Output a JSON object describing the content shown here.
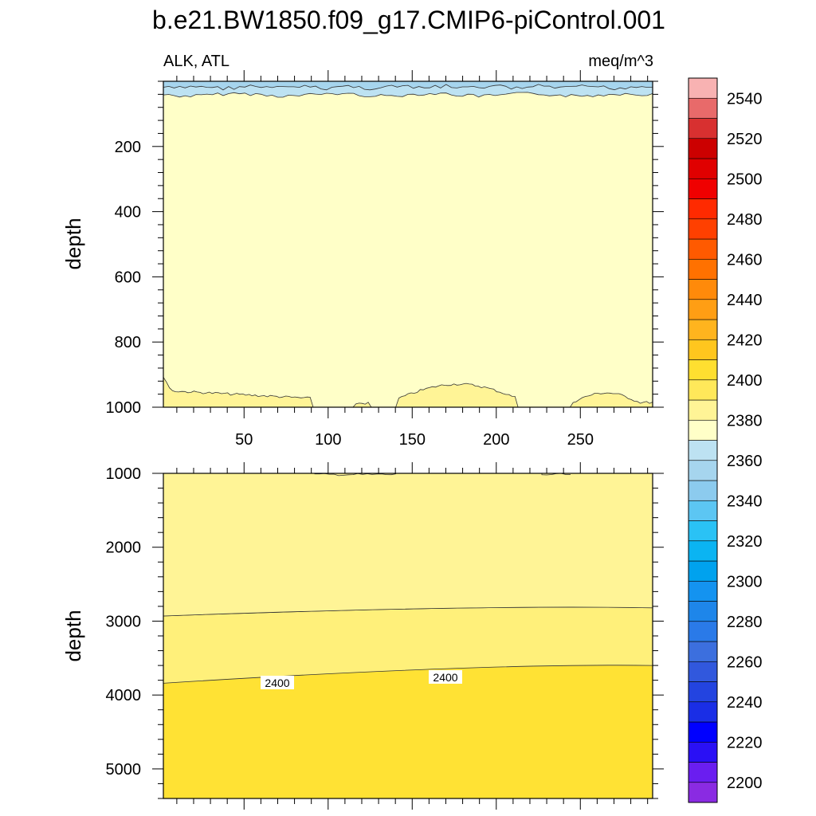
{
  "chart_data": {
    "type": "heatmap",
    "title": "b.e21.BW1850.f09_g17.CMIP6-piControl.001",
    "left_subtitle": "ALK, ATL",
    "right_subtitle": "meq/m^3",
    "ylabel": "depth",
    "x_ticks": [
      50,
      100,
      150,
      200,
      250
    ],
    "xlim": [
      2,
      293
    ],
    "panels": [
      {
        "name": "upper",
        "ylim": [
          0,
          1000
        ],
        "y_ticks": [
          200,
          400,
          600,
          800,
          1000
        ],
        "x_tick_labels_shown": true
      },
      {
        "name": "lower",
        "ylim": [
          1000,
          5400
        ],
        "y_ticks": [
          1000,
          2000,
          3000,
          4000,
          5000
        ],
        "x_tick_labels_shown": false,
        "contour_labels": [
          "2400",
          "2400"
        ]
      }
    ],
    "colorbar": {
      "levels": [
        2200,
        2210,
        2220,
        2230,
        2240,
        2250,
        2260,
        2270,
        2280,
        2290,
        2300,
        2310,
        2320,
        2330,
        2340,
        2350,
        2360,
        2370,
        2380,
        2390,
        2400,
        2410,
        2420,
        2430,
        2440,
        2450,
        2460,
        2470,
        2480,
        2490,
        2500,
        2510,
        2520,
        2530,
        2540,
        2550
      ],
      "labels": [
        "2200",
        "2220",
        "2240",
        "2260",
        "2280",
        "2300",
        "2320",
        "2340",
        "2360",
        "2380",
        "2400",
        "2420",
        "2440",
        "2460",
        "2480",
        "2500",
        "2520",
        "2540"
      ],
      "colors": [
        "#8a2be2",
        "#6a1ef0",
        "#2a10f5",
        "#0000ff",
        "#1a2ee6",
        "#2344e0",
        "#3158dd",
        "#3c6fde",
        "#2a7ae8",
        "#1e86ea",
        "#1493f0",
        "#00a2ee",
        "#0bb4f2",
        "#2ac2f5",
        "#5cc6f3",
        "#8ccbee",
        "#a6d5ee",
        "#bde2f2",
        "#ffffc8",
        "#fff496",
        "#ffe85a",
        "#ffdf30",
        "#ffc61e",
        "#ffb41e",
        "#ff9e14",
        "#ff8a0a",
        "#ff7100",
        "#ff5a00",
        "#ff4000",
        "#ff2a00",
        "#f00000",
        "#e00000",
        "#cc0000",
        "#d83030",
        "#e86a6a",
        "#f8b2b2"
      ]
    },
    "fill_colors": {
      "shallow_blue": "#bde2f2",
      "mid_blue": "#a6d5ee",
      "pale_yellow": "#ffffc8",
      "light_yellow": "#fff496",
      "mid_yellow": "#fff07a",
      "deep_yellow": "#ffe234"
    }
  }
}
